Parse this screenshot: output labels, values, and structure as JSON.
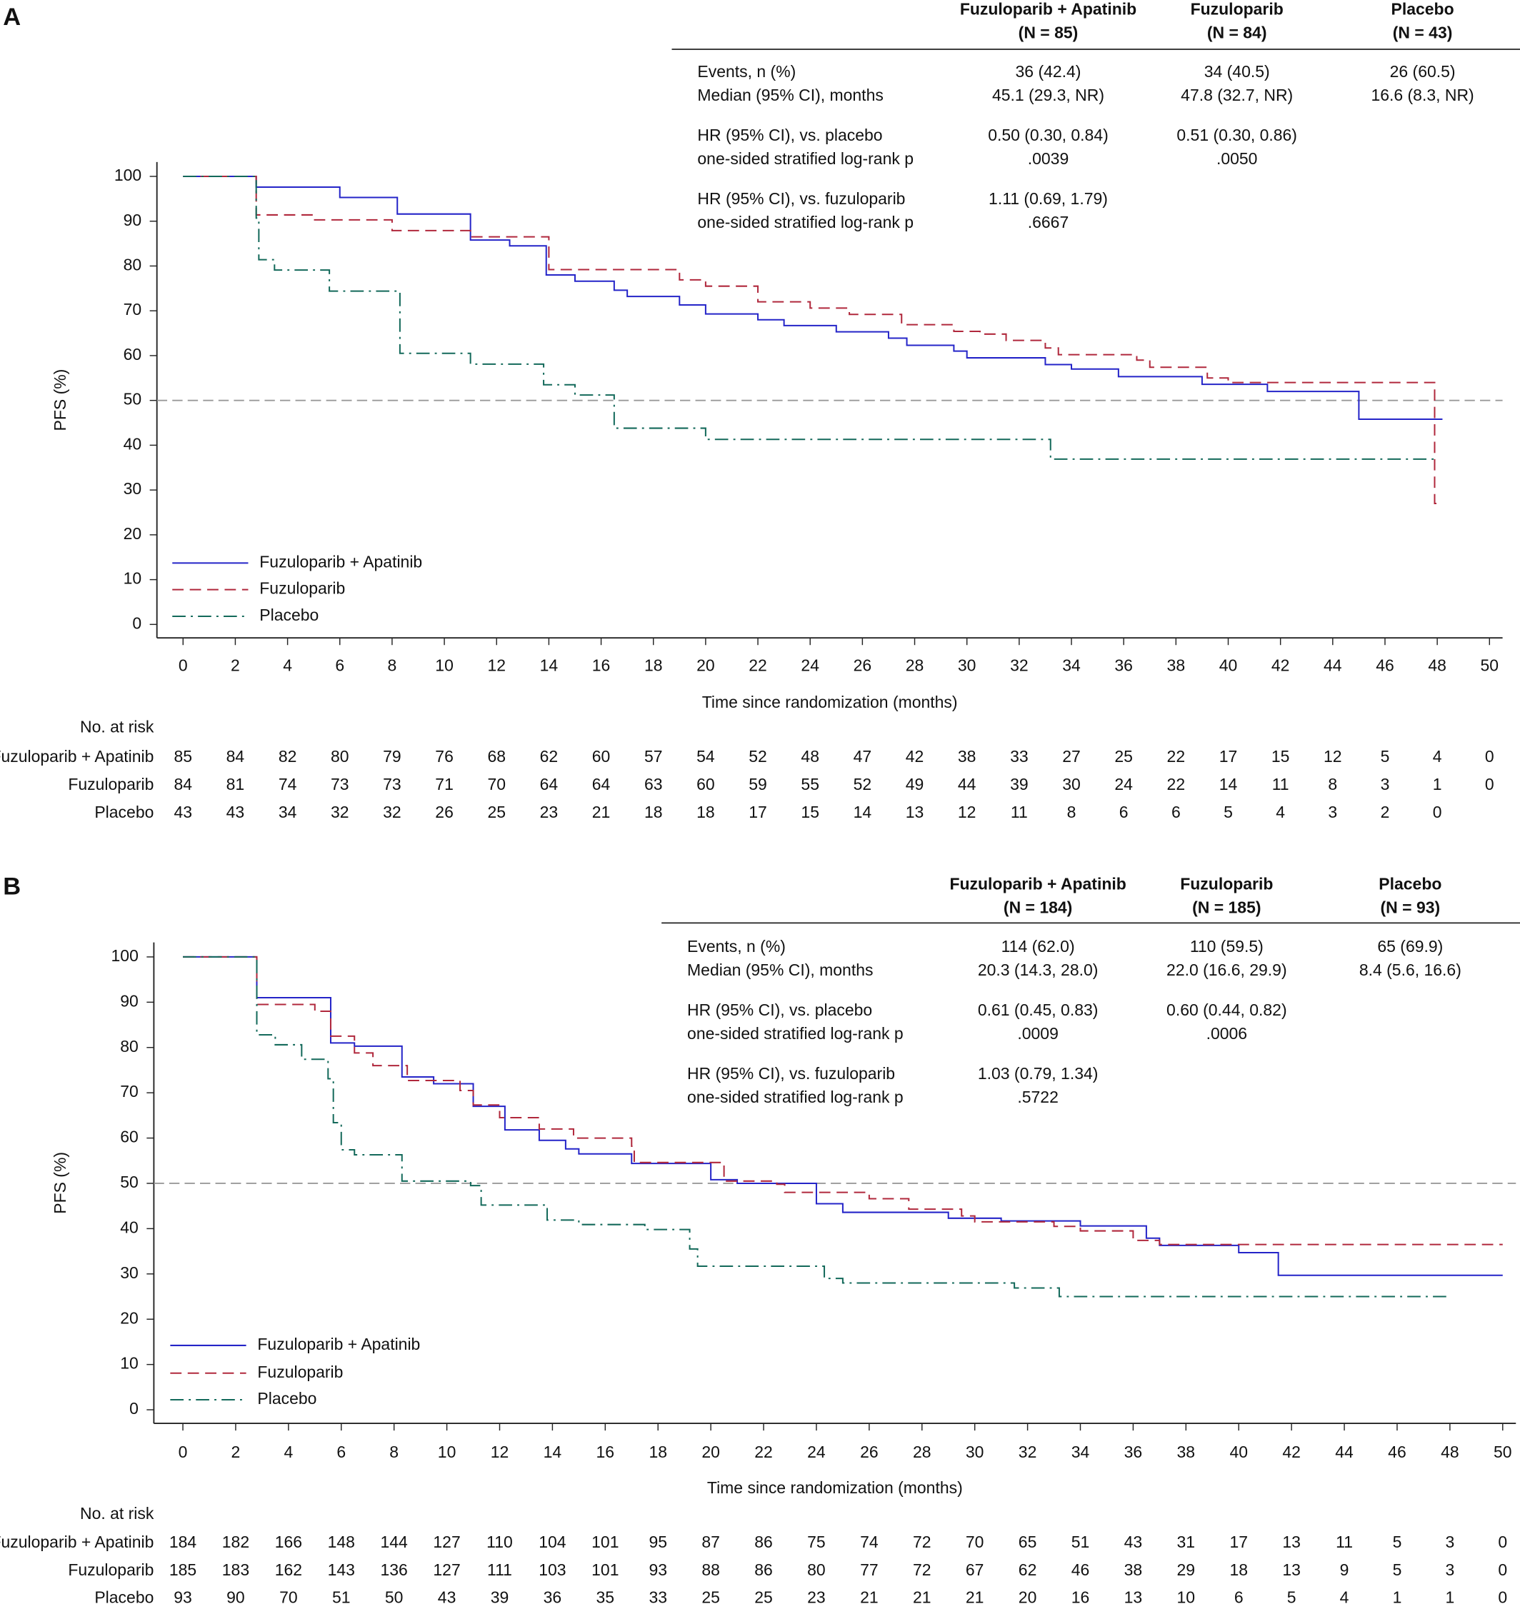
{
  "chart_data": [
    {
      "type": "line",
      "step": true,
      "panel": "A",
      "ylabel": "PFS (%)",
      "xlabel": "Time since randomization (months)",
      "xlim": [
        -1,
        50.5
      ],
      "ylim": [
        -3,
        103.2
      ],
      "xticks": [
        0,
        2,
        4,
        6,
        8,
        10,
        12,
        14,
        16,
        18,
        20,
        22,
        24,
        26,
        28,
        30,
        32,
        34,
        36,
        38,
        40,
        42,
        44,
        46,
        48,
        50
      ],
      "yticks": [
        0,
        10,
        20,
        30,
        40,
        50,
        60,
        70,
        80,
        90,
        100
      ],
      "reference_line": 50,
      "series": [
        {
          "name": "Fuzuloparib + Apatinib",
          "color": "#2424c8",
          "line_style": "solid",
          "x": [
            0,
            2.8,
            6,
            8.2,
            11,
            12.5,
            13.9,
            15,
            16.5,
            17,
            19,
            20,
            22,
            23,
            25,
            27,
            27.7,
            29.5,
            30,
            33,
            34,
            35.8,
            39,
            41.5,
            45,
            48.2
          ],
          "values": [
            100,
            97.6,
            95.3,
            91.6,
            85.8,
            84.5,
            78,
            76.6,
            74.6,
            73.2,
            71.3,
            69.3,
            68,
            66.7,
            65.3,
            63.9,
            62.3,
            61,
            59.5,
            58,
            57,
            55.3,
            53.6,
            52,
            45.8,
            45.8
          ]
        },
        {
          "name": "Fuzuloparib",
          "color": "#b0283c",
          "line_style": "dashed",
          "x": [
            0,
            2.8,
            5,
            8,
            11,
            14,
            19,
            20,
            22,
            24,
            25.5,
            27.5,
            29.5,
            30.5,
            31.5,
            33,
            33.5,
            36.5,
            37,
            39.2,
            40,
            47.9,
            48.2
          ],
          "values": [
            100,
            91.4,
            90.3,
            87.9,
            86.5,
            79.2,
            76.9,
            75.5,
            72,
            70.6,
            69.2,
            66.9,
            65.4,
            64.8,
            63.4,
            61.7,
            60.2,
            59,
            57.4,
            55,
            54,
            27,
            27
          ]
        },
        {
          "name": "Placebo",
          "color": "#13695a",
          "line_style": "dashdot",
          "x": [
            0,
            2.8,
            2.9,
            3.5,
            5.6,
            8.3,
            11,
            13.8,
            15,
            16.5,
            20,
            33.2,
            48
          ],
          "values": [
            100,
            90.7,
            81.4,
            79.1,
            74.4,
            60.5,
            58.1,
            53.5,
            51.2,
            43.8,
            41.3,
            36.9,
            36.9
          ]
        }
      ],
      "stats_table": {
        "n_labels": [
          "(N = 85)",
          "(N = 84)",
          "(N = 43)"
        ],
        "rows": [
          [
            "Events, n (%)",
            "36 (42.4)",
            "34 (40.5)",
            "26 (60.5)"
          ],
          [
            "Median (95% CI), months",
            "45.1 (29.3, NR)",
            "47.8 (32.7, NR)",
            "16.6 (8.3, NR)"
          ],
          [
            "HR (95% CI), vs. placebo",
            "0.50 (0.30, 0.84)",
            "0.51 (0.30, 0.86)",
            null
          ],
          [
            "one-sided stratified log-rank p",
            ".0039",
            ".0050",
            null
          ],
          [
            "HR (95% CI), vs. fuzuloparib",
            "1.11 (0.69, 1.79)",
            null,
            null
          ],
          [
            "one-sided stratified log-rank p",
            ".6667",
            null,
            null
          ]
        ]
      },
      "risk_table": {
        "title": "No. at risk",
        "times": [
          0,
          2,
          4,
          6,
          8,
          10,
          12,
          14,
          16,
          18,
          20,
          22,
          24,
          26,
          28,
          30,
          32,
          34,
          36,
          38,
          40,
          42,
          44,
          46,
          48,
          50
        ],
        "counts": [
          [
            85,
            84,
            82,
            80,
            79,
            76,
            68,
            62,
            60,
            57,
            54,
            52,
            48,
            47,
            42,
            38,
            33,
            27,
            25,
            22,
            17,
            15,
            12,
            5,
            4,
            0
          ],
          [
            84,
            81,
            74,
            73,
            73,
            71,
            70,
            64,
            64,
            63,
            60,
            59,
            55,
            52,
            49,
            44,
            39,
            30,
            24,
            22,
            14,
            11,
            8,
            3,
            1,
            0
          ],
          [
            43,
            43,
            34,
            32,
            32,
            26,
            25,
            23,
            21,
            18,
            18,
            17,
            15,
            14,
            13,
            12,
            11,
            8,
            6,
            6,
            5,
            4,
            3,
            2,
            0,
            null
          ]
        ]
      }
    },
    {
      "type": "line",
      "step": true,
      "panel": "B",
      "ylabel": "PFS (%)",
      "xlabel": "Time since randomization (months)",
      "xlim": [
        -1.1,
        50.5
      ],
      "ylim": [
        -3,
        103.2
      ],
      "xticks": [
        0,
        2,
        4,
        6,
        8,
        10,
        12,
        14,
        16,
        18,
        20,
        22,
        24,
        26,
        28,
        30,
        32,
        34,
        36,
        38,
        40,
        42,
        44,
        46,
        48,
        50
      ],
      "yticks": [
        0,
        10,
        20,
        30,
        40,
        50,
        60,
        70,
        80,
        90,
        100
      ],
      "reference_line": 50,
      "series": [
        {
          "name": "Fuzuloparib + Apatinib",
          "color": "#2424c8",
          "line_style": "solid",
          "x": [
            0,
            2.8,
            5.6,
            6.5,
            8.3,
            9.5,
            11,
            12.2,
            13.5,
            14.5,
            15,
            17,
            20,
            21,
            24,
            25,
            29,
            31,
            34,
            36.5,
            37,
            40,
            41.5,
            50
          ],
          "values": [
            100,
            91,
            81,
            80.3,
            73.5,
            72,
            67,
            61.8,
            59.5,
            57.6,
            56.5,
            54.4,
            50.8,
            50,
            45.5,
            43.6,
            42.3,
            41.7,
            40.6,
            37.9,
            36.3,
            34.7,
            29.7,
            29.7
          ]
        },
        {
          "name": "Fuzuloparib",
          "color": "#b0283c",
          "line_style": "dashed",
          "x": [
            0,
            2.8,
            5,
            5.6,
            6.5,
            7.2,
            8.5,
            10.5,
            11,
            12,
            13.5,
            14.8,
            17,
            17.1,
            19.5,
            20.5,
            22.5,
            22.8,
            26,
            27.5,
            29.5,
            30,
            33,
            34,
            36,
            37,
            50
          ],
          "values": [
            100,
            89.5,
            88,
            82.5,
            78.8,
            76,
            72.7,
            70.5,
            67.3,
            64.5,
            62,
            60,
            58.2,
            54.6,
            54.6,
            50.5,
            49.8,
            48,
            46.6,
            44.3,
            42.8,
            41.5,
            40.5,
            39.5,
            37.4,
            36.5,
            36.5
          ]
        },
        {
          "name": "Placebo",
          "color": "#13695a",
          "line_style": "dashdot",
          "x": [
            0,
            2.8,
            3.5,
            4.5,
            5.5,
            5.7,
            6,
            6.5,
            8.3,
            10.9,
            11.3,
            13.8,
            15,
            17.5,
            19.2,
            19.5,
            24.3,
            25,
            31.5,
            33.2,
            48
          ],
          "values": [
            100,
            82.8,
            80.6,
            77.4,
            73.1,
            63.4,
            57.4,
            56.3,
            50.5,
            49.5,
            45.2,
            41.9,
            40.9,
            39.8,
            35.5,
            31.7,
            29,
            28,
            26.9,
            25,
            25
          ]
        }
      ],
      "stats_table": {
        "n_labels": [
          "(N = 184)",
          "(N = 185)",
          "(N = 93)"
        ],
        "rows": [
          [
            "Events, n (%)",
            "114 (62.0)",
            "110 (59.5)",
            "65 (69.9)"
          ],
          [
            "Median (95% CI), months",
            "20.3 (14.3, 28.0)",
            "22.0 (16.6, 29.9)",
            "8.4 (5.6, 16.6)"
          ],
          [
            "HR (95% CI), vs. placebo",
            "0.61 (0.45, 0.83)",
            "0.60 (0.44, 0.82)",
            null
          ],
          [
            "one-sided stratified log-rank p",
            ".0009",
            ".0006",
            null
          ],
          [
            "HR (95% CI), vs. fuzuloparib",
            "1.03 (0.79, 1.34)",
            null,
            null
          ],
          [
            "one-sided stratified log-rank p",
            ".5722",
            null,
            null
          ]
        ]
      },
      "risk_table": {
        "title": "No. at risk",
        "times": [
          0,
          2,
          4,
          6,
          8,
          10,
          12,
          14,
          16,
          18,
          20,
          22,
          24,
          26,
          28,
          30,
          32,
          34,
          36,
          38,
          40,
          42,
          44,
          46,
          48,
          50
        ],
        "counts": [
          [
            184,
            182,
            166,
            148,
            144,
            127,
            110,
            104,
            101,
            95,
            87,
            86,
            75,
            74,
            72,
            70,
            65,
            51,
            43,
            31,
            17,
            13,
            11,
            5,
            3,
            0
          ],
          [
            185,
            183,
            162,
            143,
            136,
            127,
            111,
            103,
            101,
            93,
            88,
            86,
            80,
            77,
            72,
            67,
            62,
            46,
            38,
            29,
            18,
            13,
            9,
            5,
            3,
            0
          ],
          [
            93,
            90,
            70,
            51,
            50,
            43,
            39,
            36,
            35,
            33,
            25,
            25,
            23,
            21,
            21,
            21,
            20,
            16,
            13,
            10,
            6,
            5,
            4,
            1,
            1,
            0
          ]
        ]
      }
    }
  ]
}
